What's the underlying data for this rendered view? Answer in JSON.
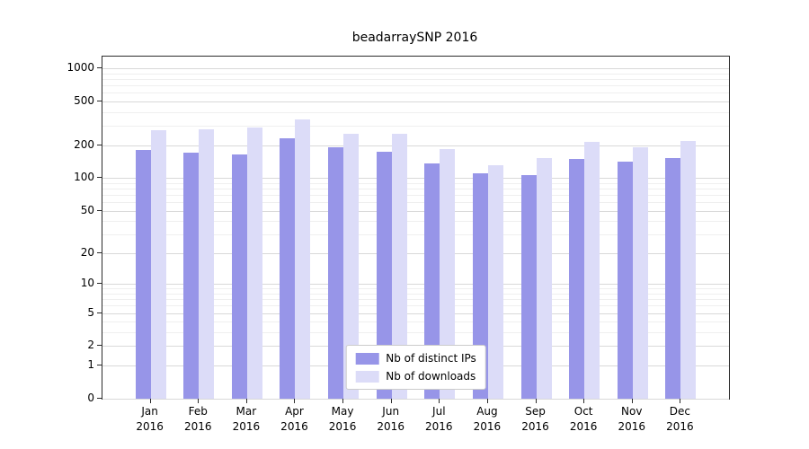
{
  "title": "beadarraySNP 2016",
  "chart_data": {
    "type": "bar",
    "title": "beadarraySNP 2016",
    "yscale": "log1p",
    "ylim": [
      0,
      1000
    ],
    "grid": true,
    "legend_position": "bottom-center-inside",
    "yticks": [
      0,
      1,
      2,
      5,
      10,
      20,
      50,
      100,
      200,
      500,
      1000
    ],
    "yticks_minor": [
      3,
      4,
      6,
      7,
      8,
      9,
      30,
      40,
      60,
      70,
      80,
      90,
      300,
      400,
      600,
      700,
      800,
      900
    ],
    "categories": [
      {
        "month": "Jan",
        "year": "2016"
      },
      {
        "month": "Feb",
        "year": "2016"
      },
      {
        "month": "Mar",
        "year": "2016"
      },
      {
        "month": "Apr",
        "year": "2016"
      },
      {
        "month": "May",
        "year": "2016"
      },
      {
        "month": "Jun",
        "year": "2016"
      },
      {
        "month": "Jul",
        "year": "2016"
      },
      {
        "month": "Aug",
        "year": "2016"
      },
      {
        "month": "Sep",
        "year": "2016"
      },
      {
        "month": "Oct",
        "year": "2016"
      },
      {
        "month": "Nov",
        "year": "2016"
      },
      {
        "month": "Dec",
        "year": "2016"
      }
    ],
    "series": [
      {
        "name": "Nb of distinct IPs",
        "color": "#9795e8",
        "values": [
          180,
          172,
          165,
          230,
          190,
          175,
          135,
          110,
          106,
          150,
          140,
          152
        ]
      },
      {
        "name": "Nb of downloads",
        "color": "#dcdcf8",
        "values": [
          275,
          280,
          290,
          345,
          255,
          255,
          185,
          132,
          152,
          212,
          190,
          218
        ]
      }
    ]
  }
}
